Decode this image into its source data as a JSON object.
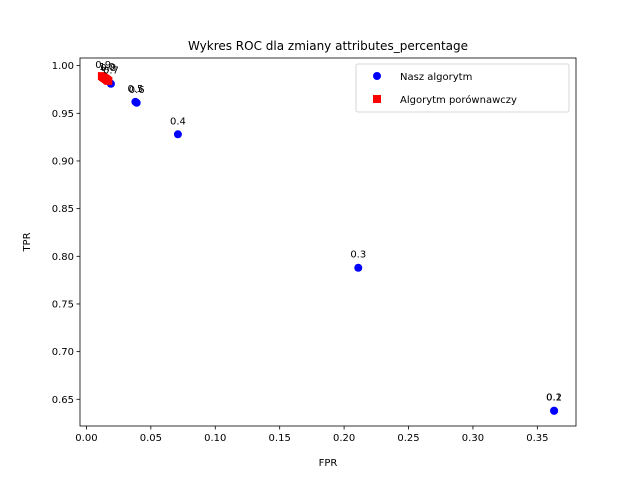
{
  "chart_data": {
    "type": "scatter",
    "title": "Wykres ROC dla zmiany attributes_percentage",
    "xlabel": "FPR",
    "ylabel": "TPR",
    "xlim": [
      -0.005,
      0.38
    ],
    "ylim": [
      0.622,
      1.008
    ],
    "xticks": [
      0.0,
      0.05,
      0.1,
      0.15,
      0.2,
      0.25,
      0.3,
      0.35
    ],
    "xtick_labels": [
      "0.00",
      "0.05",
      "0.10",
      "0.15",
      "0.20",
      "0.25",
      "0.30",
      "0.35"
    ],
    "yticks": [
      0.65,
      0.7,
      0.75,
      0.8,
      0.85,
      0.9,
      0.95,
      1.0
    ],
    "ytick_labels": [
      "0.65",
      "0.70",
      "0.75",
      "0.80",
      "0.85",
      "0.90",
      "0.95",
      "1.00"
    ],
    "grid": false,
    "legend_position": "top-right",
    "series": [
      {
        "name": "Nasz algorytm",
        "marker": "circle",
        "color": "#0000ff",
        "points": [
          {
            "x": 0.363,
            "y": 0.638,
            "label": "0.1"
          },
          {
            "x": 0.363,
            "y": 0.638,
            "label": "0.2"
          },
          {
            "x": 0.211,
            "y": 0.788,
            "label": "0.3"
          },
          {
            "x": 0.071,
            "y": 0.928,
            "label": "0.4"
          },
          {
            "x": 0.038,
            "y": 0.962,
            "label": "0.5"
          },
          {
            "x": 0.039,
            "y": 0.961,
            "label": "0.6"
          },
          {
            "x": 0.019,
            "y": 0.981,
            "label": "0.7"
          },
          {
            "x": 0.017,
            "y": 0.984,
            "label": "0.8"
          },
          {
            "x": 0.013,
            "y": 0.987,
            "label": "0.9"
          },
          {
            "x": 0.016,
            "y": 0.985,
            "label": "1.0"
          }
        ]
      },
      {
        "name": "Algorytm porównawczy",
        "marker": "square",
        "color": "#ff0000",
        "points": [
          {
            "x": 0.012,
            "y": 0.989,
            "label": ""
          },
          {
            "x": 0.013,
            "y": 0.988,
            "label": ""
          },
          {
            "x": 0.014,
            "y": 0.987,
            "label": ""
          },
          {
            "x": 0.015,
            "y": 0.986,
            "label": ""
          },
          {
            "x": 0.016,
            "y": 0.985,
            "label": ""
          },
          {
            "x": 0.017,
            "y": 0.984,
            "label": ""
          }
        ]
      }
    ]
  }
}
